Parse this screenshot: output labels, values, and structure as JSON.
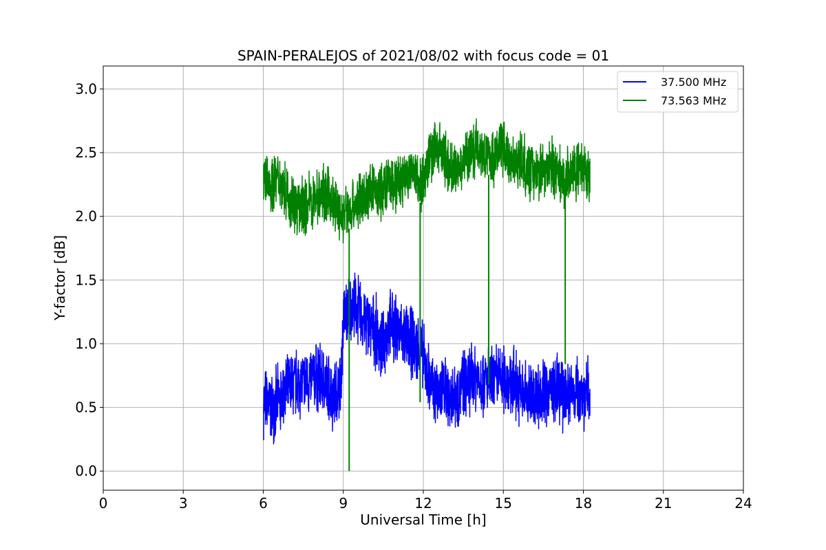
{
  "chart_data": {
    "type": "line",
    "title": "SPAIN-PERALEJOS of 2021/08/02 with focus code = 01",
    "xlabel": "Universal Time [h]",
    "ylabel": "Y-factor [dB]",
    "xlim": [
      0,
      24
    ],
    "ylim": [
      -0.15,
      3.18
    ],
    "xticks": [
      "0",
      "3",
      "6",
      "9",
      "12",
      "15",
      "18",
      "21",
      "24"
    ],
    "yticks": [
      "0.0",
      "0.5",
      "1.0",
      "1.5",
      "2.0",
      "2.5",
      "3.0"
    ],
    "grid": true,
    "legend_position": "top-right",
    "series": [
      {
        "name": "37.500 MHz",
        "color": "#0000ff",
        "x": [
          6.0,
          6.3,
          6.6,
          7.0,
          7.3,
          7.6,
          8.0,
          8.3,
          8.6,
          8.9,
          9.0,
          9.3,
          9.6,
          9.9,
          10.2,
          10.5,
          10.7,
          11.0,
          11.3,
          11.6,
          11.9,
          12.1,
          12.4,
          12.7,
          13.0,
          13.3,
          13.6,
          13.9,
          14.2,
          14.5,
          14.8,
          15.1,
          15.4,
          15.7,
          16.0,
          16.3,
          16.6,
          16.9,
          17.2,
          17.5,
          17.8,
          18.1,
          18.25
        ],
        "y": [
          0.55,
          0.5,
          0.55,
          0.65,
          0.7,
          0.68,
          0.75,
          0.7,
          0.6,
          0.65,
          1.2,
          1.3,
          1.25,
          1.15,
          1.1,
          0.95,
          1.15,
          1.1,
          1.05,
          1.0,
          0.95,
          0.8,
          0.6,
          0.65,
          0.6,
          0.62,
          0.7,
          0.75,
          0.72,
          0.7,
          0.73,
          0.72,
          0.7,
          0.6,
          0.6,
          0.6,
          0.62,
          0.65,
          0.6,
          0.62,
          0.65,
          0.6,
          0.62
        ]
      },
      {
        "name": "73.563 MHz",
        "color": "#008000",
        "x": [
          6.0,
          6.3,
          6.6,
          7.0,
          7.3,
          7.6,
          8.0,
          8.3,
          8.6,
          8.9,
          9.2,
          9.5,
          9.8,
          10.1,
          10.4,
          10.7,
          11.0,
          11.3,
          11.6,
          11.9,
          12.2,
          12.5,
          12.8,
          13.1,
          13.4,
          13.7,
          14.0,
          14.3,
          14.6,
          14.9,
          15.2,
          15.5,
          15.8,
          16.1,
          16.4,
          16.7,
          17.0,
          17.3,
          17.6,
          17.9,
          18.25
        ],
        "y": [
          2.3,
          2.25,
          2.3,
          2.15,
          2.05,
          2.1,
          2.15,
          2.2,
          2.1,
          2.0,
          2.05,
          2.1,
          2.15,
          2.2,
          2.2,
          2.25,
          2.25,
          2.3,
          2.35,
          2.25,
          2.45,
          2.55,
          2.45,
          2.35,
          2.4,
          2.5,
          2.55,
          2.5,
          2.45,
          2.55,
          2.45,
          2.45,
          2.4,
          2.35,
          2.35,
          2.4,
          2.35,
          2.3,
          2.35,
          2.35,
          2.3
        ],
        "dips": [
          {
            "x": 9.22,
            "y": 0.0
          },
          {
            "x": 11.88,
            "y": 0.54
          },
          {
            "x": 14.45,
            "y": 0.68
          },
          {
            "x": 17.32,
            "y": 0.84
          }
        ]
      }
    ]
  }
}
